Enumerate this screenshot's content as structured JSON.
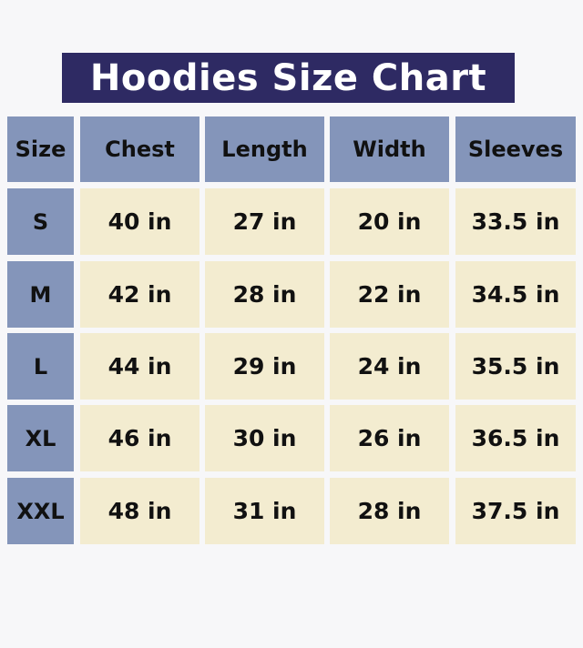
{
  "title": "Hoodies Size Chart",
  "colors": {
    "title_bg": "#2e2a63",
    "header_bg": "#8495ba",
    "cell_bg": "#f3ecd0"
  },
  "headers": [
    "Size",
    "Chest",
    "Length",
    "Width",
    "Sleeves"
  ],
  "rows": [
    [
      "S",
      "40 in",
      "27 in",
      "20 in",
      "33.5 in"
    ],
    [
      "M",
      "42 in",
      "28 in",
      "22 in",
      "34.5 in"
    ],
    [
      "L",
      "44 in",
      "29 in",
      "24 in",
      "35.5 in"
    ],
    [
      "XL",
      "46 in",
      "30 in",
      "26 in",
      "36.5 in"
    ],
    [
      "XXL",
      "48 in",
      "31 in",
      "28 in",
      "37.5 in"
    ]
  ]
}
